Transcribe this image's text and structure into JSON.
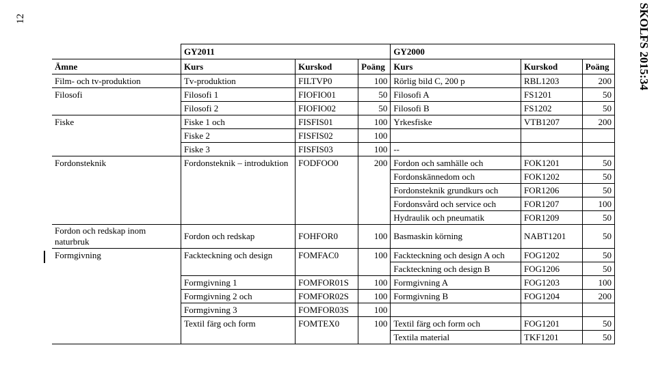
{
  "meta": {
    "page_number": "12",
    "doc_code": "SKOLFS 2015:34"
  },
  "table": {
    "group_left": "GY2011",
    "group_right": "GY2000",
    "columns": [
      "Ämne",
      "Kurs",
      "Kurskod",
      "Poäng",
      "Kurs",
      "Kurskod",
      "Poäng"
    ],
    "rows": [
      {
        "first": true,
        "c": [
          "Film- och tv-produktion",
          "Tv-produktion",
          "FILTVP0",
          "100",
          "Rörlig bild C, 200 p",
          "RBL1203",
          "200"
        ]
      },
      {
        "first": true,
        "c": [
          "Filosofi",
          "Filosofi 1",
          "FIOFIO01",
          "50",
          "Filosofi A",
          "FS1201",
          "50"
        ]
      },
      {
        "c": [
          "",
          "Filosofi 2",
          "FIOFIO02",
          "50",
          "Filosofi B",
          "FS1202",
          "50"
        ]
      },
      {
        "first": true,
        "c": [
          "Fiske",
          "Fiske 1 och",
          "FISFIS01",
          "100",
          "Yrkesfiske",
          "VTB1207",
          "200"
        ]
      },
      {
        "c": [
          "",
          "Fiske 2",
          "FISFIS02",
          "100",
          "",
          "",
          ""
        ]
      },
      {
        "c": [
          "",
          "Fiske 3",
          "FISFIS03",
          "100",
          "--",
          "",
          ""
        ]
      },
      {
        "first": true,
        "c": [
          "Fordonsteknik",
          "Fordonsteknik – introduktion",
          "FODFOO0",
          "200",
          "Fordon och samhälle och",
          "FOK1201",
          "50"
        ]
      },
      {
        "c": [
          "",
          "",
          "",
          "",
          "Fordonskännedom och",
          "FOK1202",
          "50"
        ]
      },
      {
        "c": [
          "",
          "",
          "",
          "",
          "Fordonsteknik grundkurs och",
          "FOR1206",
          "50"
        ]
      },
      {
        "c": [
          "",
          "",
          "",
          "",
          "Fordonsvård och service och",
          "FOR1207",
          "100"
        ]
      },
      {
        "c": [
          "",
          "",
          "",
          "",
          "Hydraulik och pneumatik",
          "FOR1209",
          "50"
        ]
      },
      {
        "first": true,
        "c": [
          "Fordon och redskap inom naturbruk",
          "Fordon och redskap",
          "FOHFOR0",
          "100",
          "Basmaskin körning",
          "NABT1201",
          "50"
        ]
      },
      {
        "first": true,
        "c": [
          "Formgivning",
          "Fackteckning och design",
          "FOMFAC0",
          "100",
          "Fackteckning och design A och",
          "FOG1202",
          "50"
        ]
      },
      {
        "c": [
          "",
          "",
          "",
          "",
          "Fackteckning och design B",
          "FOG1206",
          "50"
        ]
      },
      {
        "c": [
          "",
          "Formgivning 1",
          "FOMFOR01S",
          "100",
          "Formgivning A",
          "FOG1203",
          "100"
        ]
      },
      {
        "c": [
          "",
          "Formgivning 2 och",
          "FOMFOR02S",
          "100",
          "Formgivning B",
          "FOG1204",
          "200"
        ]
      },
      {
        "c": [
          "",
          "Formgivning 3",
          "FOMFOR03S",
          "100",
          "",
          "",
          ""
        ]
      },
      {
        "c": [
          "",
          "Textil färg och form",
          "FOMTEX0",
          "100",
          "Textil färg och form och",
          "FOG1201",
          "50"
        ]
      },
      {
        "c": [
          "",
          "",
          "",
          "",
          "Textila material",
          "TKF1201",
          "50"
        ]
      }
    ]
  }
}
